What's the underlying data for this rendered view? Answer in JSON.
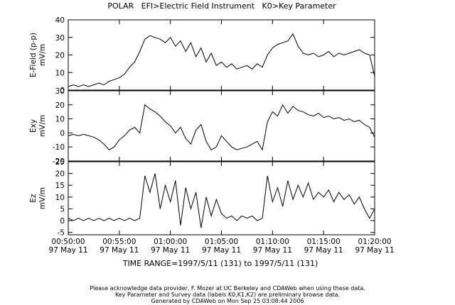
{
  "title": "POLAR   EFI>Electric Field Instrument   K0>Key Parameter",
  "time_range": "TIME RANGE=1997/5/11 (131) to 1997/5/11 (131)",
  "footer": [
    "Please acknowledge data provider, F. Mozer at UC Berkeley and CDAWeb when using these data.",
    "Key Parameter and Survey data (labels K0,K1,K2) are preliminary browse data.",
    "Generated by CDAWeb on Mon Sep 25 03:08:44 2006"
  ],
  "chart_data": [
    {
      "type": "line",
      "ylabel_lines": [
        "E-Field (p-p)",
        "mV/m"
      ],
      "ylim": [
        0,
        40
      ],
      "yticks": [
        0,
        10,
        20,
        30,
        40
      ],
      "xlim": [
        0,
        30
      ],
      "series": [
        {
          "x": [
            0,
            0.5,
            1,
            1.5,
            2,
            2.5,
            3,
            3.5,
            4,
            4.5,
            5,
            5.5,
            6,
            6.5,
            7,
            7.5,
            8,
            8.5,
            9,
            9.5,
            10,
            10.5,
            11,
            11.5,
            12,
            12.5,
            13,
            13.5,
            14,
            14.5,
            15,
            15.5,
            16,
            16.5,
            17,
            17.5,
            18,
            18.5,
            19,
            19.5,
            20,
            20.5,
            21,
            21.5,
            22,
            22.5,
            23,
            23.5,
            24,
            24.5,
            25,
            25.5,
            26,
            26.5,
            27,
            27.5,
            28,
            28.5,
            29,
            29.5,
            30
          ],
          "y": [
            2,
            3,
            2,
            3,
            2,
            3,
            4,
            3,
            5,
            6,
            7,
            9,
            13,
            16,
            22,
            29,
            31,
            30,
            29,
            27,
            30,
            25,
            28,
            22,
            27,
            19,
            24,
            16,
            21,
            14,
            16,
            13,
            15,
            12,
            13,
            14,
            12,
            15,
            13,
            20,
            24,
            26,
            27,
            28,
            32,
            25,
            21,
            20,
            21,
            19,
            20,
            22,
            19,
            21,
            20,
            21,
            22,
            23,
            21,
            20,
            8
          ]
        }
      ]
    },
    {
      "type": "line",
      "ylabel_lines": [
        "Exy",
        "mV/m"
      ],
      "ylim": [
        -20,
        30
      ],
      "yticks": [
        -20,
        -10,
        0,
        10,
        20,
        30
      ],
      "xlim": [
        0,
        30
      ],
      "series": [
        {
          "x": [
            0,
            0.5,
            1,
            1.5,
            2,
            2.5,
            3,
            3.5,
            4,
            4.5,
            5,
            5.5,
            6,
            6.5,
            7,
            7.5,
            8,
            8.5,
            9,
            9.5,
            10,
            10.5,
            11,
            11.5,
            12,
            12.5,
            13,
            13.5,
            14,
            14.5,
            15,
            15.5,
            16,
            16.5,
            17,
            17.5,
            18,
            18.5,
            19,
            19.5,
            20,
            20.5,
            21,
            21.5,
            22,
            22.5,
            23,
            23.5,
            24,
            24.5,
            25,
            25.5,
            26,
            26.5,
            27,
            27.5,
            28,
            28.5,
            29,
            29.5,
            30
          ],
          "y": [
            -2,
            -1,
            -2,
            -1,
            -2,
            -3,
            -5,
            -8,
            -12,
            -10,
            -5,
            -2,
            2,
            4,
            0,
            20,
            17,
            15,
            12,
            8,
            5,
            0,
            4,
            -4,
            -8,
            2,
            6,
            -6,
            -12,
            -10,
            -2,
            -6,
            -10,
            -12,
            -11,
            -10,
            -8,
            -6,
            -12,
            8,
            15,
            12,
            20,
            14,
            19,
            16,
            15,
            13,
            12,
            14,
            11,
            12,
            10,
            11,
            9,
            10,
            8,
            9,
            6,
            4,
            -3
          ]
        }
      ]
    },
    {
      "type": "line",
      "ylabel_lines": [
        "Ez",
        "mV/m"
      ],
      "ylim": [
        -6,
        25
      ],
      "yticks": [
        -5,
        0,
        5,
        10,
        15,
        20,
        25
      ],
      "xlim": [
        0,
        30
      ],
      "series": [
        {
          "x": [
            0,
            0.5,
            1,
            1.5,
            2,
            2.5,
            3,
            3.5,
            4,
            4.5,
            5,
            5.5,
            6,
            6.5,
            7,
            7.5,
            8,
            8.5,
            9,
            9.5,
            10,
            10.5,
            11,
            11.5,
            12,
            12.5,
            13,
            13.5,
            14,
            14.5,
            15,
            15.5,
            16,
            16.5,
            17,
            17.5,
            18,
            18.5,
            19,
            19.5,
            20,
            20.5,
            21,
            21.5,
            22,
            22.5,
            23,
            23.5,
            24,
            24.5,
            25,
            25.5,
            26,
            26.5,
            27,
            27.5,
            28,
            28.5,
            29,
            29.5,
            30
          ],
          "y": [
            1,
            0,
            1,
            0,
            1,
            0,
            1,
            0,
            1,
            0,
            1,
            0,
            1,
            0,
            1,
            19,
            12,
            20,
            5,
            15,
            8,
            17,
            -2,
            14,
            5,
            12,
            -3,
            10,
            2,
            9,
            3,
            1,
            2,
            0,
            2,
            1,
            2,
            0,
            1,
            19,
            8,
            14,
            6,
            17,
            9,
            15,
            10,
            16,
            9,
            12,
            10,
            13,
            8,
            12,
            9,
            11,
            7,
            10,
            5,
            1,
            5
          ]
        }
      ]
    }
  ],
  "x_axis": {
    "ticks": [
      {
        "x": 0,
        "time": "00:50:00",
        "date": "97 May 11"
      },
      {
        "x": 5,
        "time": "00:55:00",
        "date": "97 May 11"
      },
      {
        "x": 10,
        "time": "01:00:00",
        "date": "97 May 11"
      },
      {
        "x": 15,
        "time": "01:05:00",
        "date": "97 May 11"
      },
      {
        "x": 20,
        "time": "01:10:00",
        "date": "97 May 11"
      },
      {
        "x": 25,
        "time": "01:15:00",
        "date": "97 May 11"
      },
      {
        "x": 30,
        "time": "01:20:00",
        "date": "97 May 11"
      }
    ]
  }
}
